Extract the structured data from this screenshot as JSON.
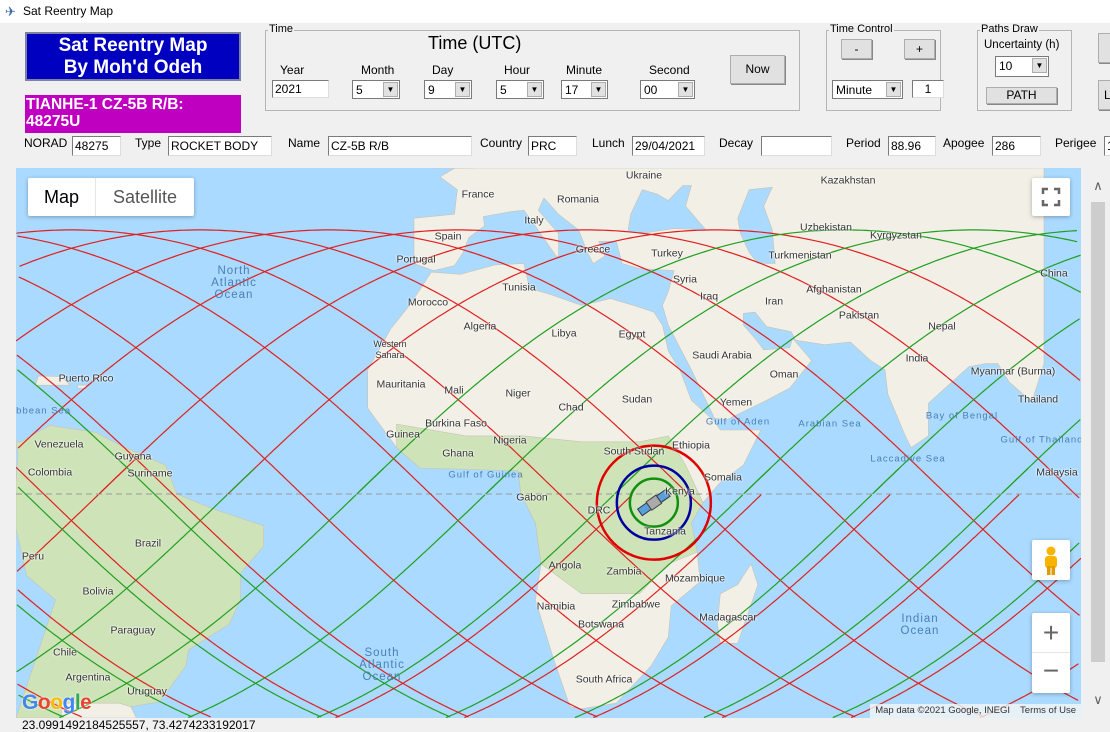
{
  "window": {
    "title": "Sat Reentry Map",
    "icon": "satellite-icon"
  },
  "banner": {
    "line1": "Sat Reentry Map",
    "line2": "By Moh'd Odeh",
    "color": "#0000c0"
  },
  "object_banner": {
    "text": "TIANHE-1 CZ-5B R/B: 48275U",
    "color": "#c000c0"
  },
  "time": {
    "group_label": "Time",
    "heading": "Time (UTC)",
    "year": {
      "label": "Year",
      "value": "2021"
    },
    "month": {
      "label": "Month",
      "value": "5"
    },
    "day": {
      "label": "Day",
      "value": "9"
    },
    "hour": {
      "label": "Hour",
      "value": "5"
    },
    "minute": {
      "label": "Minute",
      "value": "17"
    },
    "second": {
      "label": "Second",
      "value": "00"
    },
    "now_button": "Now"
  },
  "time_control": {
    "group_label": "Time Control",
    "minus": "-",
    "plus": "+",
    "unit": "Minute",
    "step": "1"
  },
  "paths": {
    "group_label": "Paths Draw",
    "uncertainty_label": "Uncertainty (h)",
    "uncertainty": "10",
    "path_button": "PATH"
  },
  "right_buttons": {
    "second_label": "L"
  },
  "info": {
    "norad_label": "NORAD",
    "norad": "48275",
    "type_label": "Type",
    "type": "ROCKET BODY",
    "name_label": "Name",
    "name": "CZ-5B R/B",
    "country_label": "Country",
    "country": "PRC",
    "launch_label": "Lunch",
    "launch": "29/04/2021",
    "decay_label": "Decay",
    "decay": "",
    "period_label": "Period",
    "period": "88.96",
    "apogee_label": "Apogee",
    "apogee": "286",
    "perigee_label": "Perigee",
    "perigee": "1"
  },
  "map": {
    "tab_map": "Map",
    "tab_satellite": "Satellite",
    "active_tab": "Map",
    "attribution": "Map data ©2021 Google, INEGI",
    "terms": "Terms of Use",
    "logo": "Google",
    "colors": {
      "ocean": "#aadaff",
      "land": "#f2efe6",
      "veg": "#cfe3b8",
      "track_a": "#e02020",
      "track_b": "#20a020",
      "ring_outer": "#e00000",
      "ring_mid": "#0000a0",
      "ring_inner": "#109010"
    },
    "labels": [
      "France",
      "Romania",
      "Ukraine",
      "Kazakhstan",
      "Italy",
      "Spain",
      "Uzbekistan",
      "Kyrgyzstan",
      "Greece",
      "Turkey",
      "Turkmenistan",
      "Portugal",
      "China",
      "Syria",
      "Tunisia",
      "Afghanistan",
      "Iraq",
      "Morocco",
      "Iran",
      "Pakistan",
      "Algeria",
      "Libya",
      "Egypt",
      "Nepal",
      "Western Sahara",
      "Saudi Arabia",
      "India",
      "Myanmar (Burma)",
      "Puerto Rico",
      "Oman",
      "Mauritania",
      "Mali",
      "Niger",
      "Chad",
      "Sudan",
      "Yemen",
      "Thailand",
      "Burkina Faso",
      "Venezuela",
      "Guyana",
      "Ethiopia",
      "South Sudan",
      "Nigeria",
      "Guinea",
      "Ghana",
      "Suriname",
      "Colombia",
      "Malaysia",
      "Somalia",
      "Gabon",
      "Kenya",
      "DRC",
      "Tanzania",
      "Peru",
      "Brazil",
      "Angola",
      "Zambia",
      "Mozambique",
      "Bolivia",
      "Namibia",
      "Zimbabwe",
      "Madagascar",
      "Botswana",
      "Paraguay",
      "Chile",
      "South Africa",
      "Uruguay",
      "Argentina"
    ],
    "water_labels": [
      "North Atlantic Ocean",
      "South Atlantic Ocean",
      "Indian Ocean",
      "Arabian Sea",
      "Bay of Bengal",
      "Gulf of Aden",
      "Gulf of Guinea",
      "Laccadive Sea",
      "Gulf of Thailand",
      "ribbean Sea"
    ],
    "satellite": {
      "lat": -1.5,
      "lon": 32.5,
      "icon": "satellite-icon"
    }
  },
  "status": {
    "coordinates": "23.0991492184525557, 73.4274233192017"
  }
}
